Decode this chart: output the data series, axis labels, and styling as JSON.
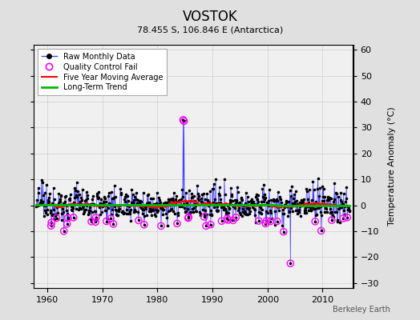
{
  "title": "VOSTOK",
  "subtitle": "78.455 S, 106.846 E (Antarctica)",
  "ylabel_right": "Temperature Anomaly (°C)",
  "watermark": "Berkeley Earth",
  "ylim": [
    -32,
    62
  ],
  "yticks": [
    -30,
    -20,
    -10,
    0,
    10,
    20,
    30,
    40,
    50,
    60
  ],
  "xlim": [
    1957.5,
    2015.5
  ],
  "xticks": [
    1960,
    1970,
    1980,
    1990,
    2000,
    2010
  ],
  "bg_color": "#e0e0e0",
  "plot_bg_color": "#f0f0f0",
  "grid_color": "#d0d0d0",
  "line_color_raw": "#4444ff",
  "marker_color_raw": "#000000",
  "line_color_mavg": "#ff0000",
  "line_color_trend": "#00bb00",
  "qc_fail_color": "#ff00ff",
  "seed": 12345,
  "noise_std": 2.8,
  "seasonal_amp": 1.5,
  "spike_year": 1984.7,
  "spike_year2": 1984.85,
  "spike_val": 33.0,
  "neg_spike_year": 2004.2,
  "neg_spike_val": -22.5,
  "early_neg_year": 1963.0,
  "early_neg_val": -10.0
}
